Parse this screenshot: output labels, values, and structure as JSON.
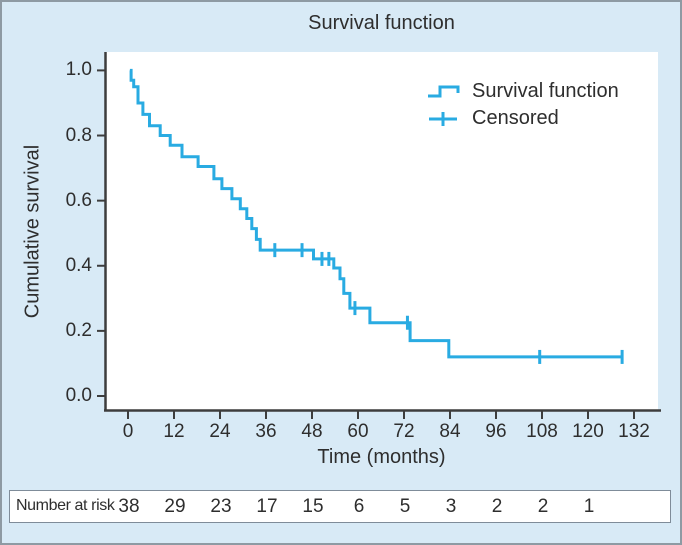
{
  "title": "Survival function",
  "colors": {
    "background": "#d8eaf6",
    "frame_border": "#8e9aa3",
    "plot_background": "#ffffff",
    "curve": "#29abe2",
    "axis": "#3d3d3d",
    "text": "#2e2e2e",
    "risk_box_border": "#7f8c99"
  },
  "chart_data": {
    "type": "line",
    "subtype": "kaplan-meier-step",
    "title": "Survival function",
    "xlabel": "Time (months)",
    "ylabel": "Cumulative survival",
    "xlim": [
      -6,
      139
    ],
    "ylim": [
      0,
      1.05
    ],
    "grid": false,
    "legend_position": "inside-top-right",
    "x_tick_values": [
      0,
      12,
      24,
      36,
      48,
      60,
      72,
      84,
      96,
      108,
      120,
      132
    ],
    "x_ticks": [
      "0",
      "12",
      "24",
      "36",
      "48",
      "60",
      "72",
      "84",
      "96",
      "108",
      "120",
      "132"
    ],
    "y_tick_values": [
      1.0,
      0.8,
      0.6,
      0.4,
      0.2,
      0.0
    ],
    "y_ticks": [
      "1.0",
      "0.8",
      "0.6",
      "0.4",
      "0.2",
      "0.0"
    ],
    "series": [
      {
        "name": "Survival function",
        "color": "#29abe2",
        "start": [
          0.5,
          1.0
        ],
        "step_points": [
          [
            0.8,
            0.97
          ],
          [
            1.5,
            0.95
          ],
          [
            2.6,
            0.9
          ],
          [
            3.9,
            0.865
          ],
          [
            5.6,
            0.83
          ],
          [
            8.4,
            0.8
          ],
          [
            11.0,
            0.77
          ],
          [
            14.1,
            0.735
          ],
          [
            18.3,
            0.705
          ],
          [
            22.4,
            0.667
          ],
          [
            24.5,
            0.637
          ],
          [
            27.1,
            0.606
          ],
          [
            29.3,
            0.575
          ],
          [
            31.0,
            0.545
          ],
          [
            32.3,
            0.514
          ],
          [
            33.5,
            0.481
          ],
          [
            34.5,
            0.448
          ],
          [
            48.4,
            0.421
          ],
          [
            53.7,
            0.393
          ],
          [
            55.3,
            0.36
          ],
          [
            56.3,
            0.315
          ],
          [
            57.9,
            0.27
          ],
          [
            63.1,
            0.225
          ],
          [
            73.6,
            0.17
          ],
          [
            83.7,
            0.12
          ]
        ],
        "end_time": 128.9
      }
    ],
    "censored_points": [
      [
        38.3,
        0.448
      ],
      [
        45.4,
        0.448
      ],
      [
        50.6,
        0.421
      ],
      [
        52.4,
        0.421
      ],
      [
        59.2,
        0.27
      ],
      [
        72.9,
        0.225
      ],
      [
        107.4,
        0.12
      ],
      [
        128.9,
        0.12
      ]
    ]
  },
  "legend": {
    "items": [
      {
        "label": "Survival function",
        "marker": "step-line"
      },
      {
        "label": "Censored",
        "marker": "plus"
      }
    ]
  },
  "risk_table": {
    "label": "Number at risk",
    "times": [
      0,
      12,
      24,
      36,
      48,
      60,
      72,
      84,
      96,
      108,
      120
    ],
    "values": [
      "38",
      "29",
      "23",
      "17",
      "15",
      "6",
      "5",
      "3",
      "2",
      "2",
      "1"
    ]
  }
}
